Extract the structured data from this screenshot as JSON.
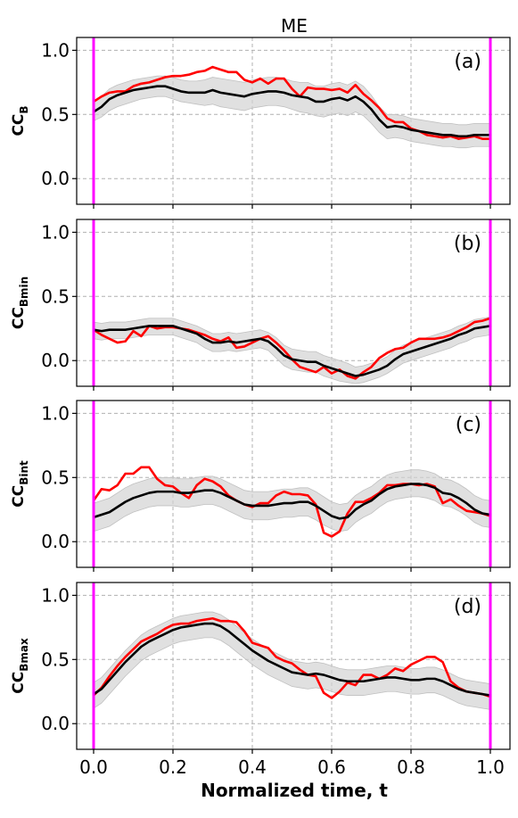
{
  "figure": {
    "title": "ME",
    "xlabel": "Normalized time,  t"
  },
  "chart_data": [
    {
      "type": "line",
      "panel_label": "(a)",
      "ylabel_main": "CC",
      "ylabel_sub": "B",
      "xlim": [
        0,
        1
      ],
      "ylim": [
        -0.2,
        1.1
      ],
      "xticks": [
        "0.0",
        "0.2",
        "0.4",
        "0.6",
        "0.8",
        "1.0"
      ],
      "yticks": [
        "0.0",
        "0.5",
        "1.0"
      ],
      "grid": true,
      "vlines": [
        0.0,
        1.0
      ],
      "x": [
        0.0,
        0.02,
        0.04,
        0.06,
        0.08,
        0.1,
        0.12,
        0.14,
        0.16,
        0.18,
        0.2,
        0.22,
        0.24,
        0.26,
        0.28,
        0.3,
        0.32,
        0.34,
        0.36,
        0.38,
        0.4,
        0.42,
        0.44,
        0.46,
        0.48,
        0.5,
        0.52,
        0.54,
        0.56,
        0.58,
        0.6,
        0.62,
        0.64,
        0.66,
        0.68,
        0.7,
        0.72,
        0.74,
        0.76,
        0.78,
        0.8,
        0.82,
        0.84,
        0.86,
        0.88,
        0.9,
        0.92,
        0.94,
        0.96,
        0.98,
        1.0
      ],
      "series": [
        {
          "color": "#ff0000",
          "values": [
            0.6,
            0.64,
            0.67,
            0.68,
            0.68,
            0.72,
            0.74,
            0.75,
            0.77,
            0.79,
            0.8,
            0.8,
            0.81,
            0.83,
            0.84,
            0.87,
            0.85,
            0.83,
            0.83,
            0.77,
            0.75,
            0.78,
            0.74,
            0.78,
            0.78,
            0.7,
            0.64,
            0.71,
            0.7,
            0.7,
            0.69,
            0.7,
            0.67,
            0.73,
            0.66,
            0.61,
            0.55,
            0.47,
            0.44,
            0.44,
            0.39,
            0.37,
            0.34,
            0.33,
            0.32,
            0.33,
            0.31,
            0.32,
            0.33,
            0.31,
            0.31
          ]
        },
        {
          "color": "#000000",
          "values": [
            0.52,
            0.56,
            0.62,
            0.65,
            0.67,
            0.69,
            0.7,
            0.71,
            0.72,
            0.72,
            0.7,
            0.68,
            0.67,
            0.67,
            0.67,
            0.69,
            0.67,
            0.66,
            0.65,
            0.64,
            0.66,
            0.67,
            0.68,
            0.68,
            0.67,
            0.65,
            0.64,
            0.63,
            0.6,
            0.6,
            0.62,
            0.63,
            0.61,
            0.64,
            0.6,
            0.54,
            0.46,
            0.4,
            0.41,
            0.4,
            0.38,
            0.37,
            0.36,
            0.35,
            0.34,
            0.34,
            0.33,
            0.33,
            0.34,
            0.34,
            0.34
          ]
        }
      ],
      "band": {
        "lower": [
          0.45,
          0.48,
          0.53,
          0.56,
          0.58,
          0.6,
          0.62,
          0.63,
          0.64,
          0.64,
          0.62,
          0.6,
          0.59,
          0.58,
          0.57,
          0.58,
          0.56,
          0.55,
          0.54,
          0.53,
          0.55,
          0.56,
          0.57,
          0.57,
          0.56,
          0.54,
          0.52,
          0.51,
          0.49,
          0.48,
          0.5,
          0.51,
          0.49,
          0.52,
          0.49,
          0.43,
          0.36,
          0.31,
          0.32,
          0.31,
          0.29,
          0.28,
          0.27,
          0.26,
          0.25,
          0.25,
          0.24,
          0.24,
          0.25,
          0.25,
          0.25
        ],
        "upper": [
          0.6,
          0.64,
          0.7,
          0.73,
          0.75,
          0.77,
          0.78,
          0.79,
          0.8,
          0.8,
          0.79,
          0.77,
          0.76,
          0.76,
          0.77,
          0.79,
          0.78,
          0.77,
          0.76,
          0.75,
          0.77,
          0.78,
          0.79,
          0.79,
          0.78,
          0.76,
          0.75,
          0.75,
          0.72,
          0.72,
          0.74,
          0.75,
          0.73,
          0.76,
          0.72,
          0.65,
          0.56,
          0.5,
          0.5,
          0.49,
          0.47,
          0.46,
          0.45,
          0.44,
          0.43,
          0.43,
          0.42,
          0.42,
          0.43,
          0.43,
          0.43
        ]
      }
    },
    {
      "type": "line",
      "panel_label": "(b)",
      "ylabel_main": "CC",
      "ylabel_sub": "Bmin",
      "xlim": [
        0,
        1
      ],
      "ylim": [
        -0.2,
        1.1
      ],
      "xticks": [
        "0.0",
        "0.2",
        "0.4",
        "0.6",
        "0.8",
        "1.0"
      ],
      "yticks": [
        "0.0",
        "0.5",
        "1.0"
      ],
      "grid": true,
      "vlines": [
        0.0,
        1.0
      ],
      "x": [
        0.0,
        0.02,
        0.04,
        0.06,
        0.08,
        0.1,
        0.12,
        0.14,
        0.16,
        0.18,
        0.2,
        0.22,
        0.24,
        0.26,
        0.28,
        0.3,
        0.32,
        0.34,
        0.36,
        0.38,
        0.4,
        0.42,
        0.44,
        0.46,
        0.48,
        0.5,
        0.52,
        0.54,
        0.56,
        0.58,
        0.6,
        0.62,
        0.64,
        0.66,
        0.68,
        0.7,
        0.72,
        0.74,
        0.76,
        0.78,
        0.8,
        0.82,
        0.84,
        0.86,
        0.88,
        0.9,
        0.92,
        0.94,
        0.96,
        0.98,
        1.0
      ],
      "series": [
        {
          "color": "#ff0000",
          "values": [
            0.24,
            0.2,
            0.17,
            0.14,
            0.15,
            0.23,
            0.19,
            0.27,
            0.25,
            0.26,
            0.26,
            0.25,
            0.24,
            0.22,
            0.2,
            0.17,
            0.15,
            0.18,
            0.1,
            0.11,
            0.14,
            0.17,
            0.19,
            0.14,
            0.08,
            0.01,
            -0.05,
            -0.07,
            -0.09,
            -0.05,
            -0.1,
            -0.07,
            -0.12,
            -0.14,
            -0.09,
            -0.05,
            0.02,
            0.06,
            0.09,
            0.1,
            0.14,
            0.17,
            0.17,
            0.17,
            0.18,
            0.2,
            0.23,
            0.26,
            0.3,
            0.31,
            0.33
          ]
        },
        {
          "color": "#000000",
          "values": [
            0.24,
            0.23,
            0.24,
            0.24,
            0.24,
            0.25,
            0.26,
            0.27,
            0.27,
            0.27,
            0.27,
            0.25,
            0.23,
            0.21,
            0.17,
            0.14,
            0.14,
            0.15,
            0.14,
            0.15,
            0.16,
            0.17,
            0.15,
            0.1,
            0.04,
            0.01,
            0.0,
            -0.01,
            -0.01,
            -0.04,
            -0.06,
            -0.08,
            -0.1,
            -0.12,
            -0.11,
            -0.09,
            -0.07,
            -0.04,
            0.01,
            0.05,
            0.07,
            0.09,
            0.11,
            0.13,
            0.15,
            0.17,
            0.2,
            0.22,
            0.25,
            0.26,
            0.27
          ]
        }
      ],
      "band": {
        "lower": [
          0.17,
          0.16,
          0.17,
          0.17,
          0.17,
          0.18,
          0.19,
          0.2,
          0.2,
          0.2,
          0.2,
          0.18,
          0.16,
          0.14,
          0.1,
          0.07,
          0.07,
          0.08,
          0.07,
          0.08,
          0.09,
          0.1,
          0.08,
          0.02,
          -0.04,
          -0.07,
          -0.08,
          -0.09,
          -0.09,
          -0.12,
          -0.14,
          -0.16,
          -0.17,
          -0.18,
          -0.17,
          -0.15,
          -0.13,
          -0.1,
          -0.06,
          -0.02,
          0.0,
          0.02,
          0.04,
          0.06,
          0.08,
          0.1,
          0.13,
          0.15,
          0.18,
          0.19,
          0.2
        ],
        "upper": [
          0.3,
          0.29,
          0.3,
          0.3,
          0.3,
          0.31,
          0.32,
          0.33,
          0.33,
          0.33,
          0.33,
          0.31,
          0.29,
          0.27,
          0.24,
          0.21,
          0.21,
          0.22,
          0.21,
          0.22,
          0.23,
          0.24,
          0.22,
          0.18,
          0.12,
          0.09,
          0.08,
          0.07,
          0.07,
          0.04,
          0.02,
          0.0,
          -0.02,
          -0.05,
          -0.04,
          -0.02,
          0.0,
          0.03,
          0.08,
          0.12,
          0.14,
          0.16,
          0.18,
          0.2,
          0.22,
          0.24,
          0.27,
          0.29,
          0.32,
          0.33,
          0.34
        ]
      }
    },
    {
      "type": "line",
      "panel_label": "(c)",
      "ylabel_main": "CC",
      "ylabel_sub": "Bint",
      "xlim": [
        0,
        1
      ],
      "ylim": [
        -0.2,
        1.1
      ],
      "xticks": [
        "0.0",
        "0.2",
        "0.4",
        "0.6",
        "0.8",
        "1.0"
      ],
      "yticks": [
        "0.0",
        "0.5",
        "1.0"
      ],
      "grid": true,
      "vlines": [
        0.0,
        1.0
      ],
      "x": [
        0.0,
        0.02,
        0.04,
        0.06,
        0.08,
        0.1,
        0.12,
        0.14,
        0.16,
        0.18,
        0.2,
        0.22,
        0.24,
        0.26,
        0.28,
        0.3,
        0.32,
        0.34,
        0.36,
        0.38,
        0.4,
        0.42,
        0.44,
        0.46,
        0.48,
        0.5,
        0.52,
        0.54,
        0.56,
        0.58,
        0.6,
        0.62,
        0.64,
        0.66,
        0.68,
        0.7,
        0.72,
        0.74,
        0.76,
        0.78,
        0.8,
        0.82,
        0.84,
        0.86,
        0.88,
        0.9,
        0.92,
        0.94,
        0.96,
        0.98,
        1.0
      ],
      "series": [
        {
          "color": "#ff0000",
          "values": [
            0.32,
            0.41,
            0.4,
            0.44,
            0.53,
            0.53,
            0.58,
            0.58,
            0.49,
            0.44,
            0.43,
            0.38,
            0.34,
            0.44,
            0.49,
            0.47,
            0.43,
            0.36,
            0.32,
            0.29,
            0.27,
            0.3,
            0.3,
            0.36,
            0.39,
            0.37,
            0.37,
            0.36,
            0.29,
            0.07,
            0.04,
            0.08,
            0.22,
            0.31,
            0.31,
            0.34,
            0.38,
            0.44,
            0.44,
            0.45,
            0.45,
            0.44,
            0.45,
            0.43,
            0.3,
            0.33,
            0.28,
            0.24,
            0.23,
            0.22,
            0.2
          ]
        },
        {
          "color": "#000000",
          "values": [
            0.19,
            0.21,
            0.23,
            0.27,
            0.31,
            0.34,
            0.36,
            0.38,
            0.39,
            0.39,
            0.39,
            0.38,
            0.38,
            0.39,
            0.4,
            0.4,
            0.38,
            0.35,
            0.32,
            0.29,
            0.28,
            0.28,
            0.28,
            0.29,
            0.3,
            0.3,
            0.31,
            0.31,
            0.28,
            0.24,
            0.2,
            0.18,
            0.19,
            0.25,
            0.29,
            0.32,
            0.37,
            0.41,
            0.43,
            0.44,
            0.45,
            0.45,
            0.44,
            0.42,
            0.38,
            0.37,
            0.34,
            0.3,
            0.25,
            0.22,
            0.21
          ]
        }
      ],
      "band": {
        "lower": [
          0.08,
          0.1,
          0.12,
          0.16,
          0.2,
          0.23,
          0.25,
          0.27,
          0.28,
          0.28,
          0.28,
          0.27,
          0.27,
          0.28,
          0.29,
          0.29,
          0.27,
          0.24,
          0.21,
          0.18,
          0.17,
          0.17,
          0.17,
          0.18,
          0.19,
          0.19,
          0.2,
          0.2,
          0.17,
          0.13,
          0.1,
          0.08,
          0.09,
          0.15,
          0.19,
          0.22,
          0.27,
          0.31,
          0.33,
          0.34,
          0.35,
          0.35,
          0.34,
          0.32,
          0.28,
          0.27,
          0.24,
          0.2,
          0.15,
          0.12,
          0.11
        ],
        "upper": [
          0.3,
          0.32,
          0.34,
          0.38,
          0.42,
          0.45,
          0.47,
          0.49,
          0.5,
          0.5,
          0.5,
          0.49,
          0.49,
          0.5,
          0.51,
          0.51,
          0.49,
          0.46,
          0.43,
          0.4,
          0.39,
          0.39,
          0.39,
          0.4,
          0.41,
          0.41,
          0.42,
          0.42,
          0.39,
          0.35,
          0.31,
          0.29,
          0.3,
          0.36,
          0.4,
          0.43,
          0.48,
          0.52,
          0.54,
          0.55,
          0.56,
          0.56,
          0.55,
          0.53,
          0.49,
          0.48,
          0.45,
          0.41,
          0.36,
          0.33,
          0.32
        ]
      }
    },
    {
      "type": "line",
      "panel_label": "(d)",
      "ylabel_main": "CC",
      "ylabel_sub": "Bmax",
      "xlim": [
        0,
        1
      ],
      "ylim": [
        -0.2,
        1.1
      ],
      "xticks": [
        "0.0",
        "0.2",
        "0.4",
        "0.6",
        "0.8",
        "1.0"
      ],
      "yticks": [
        "0.0",
        "0.5",
        "1.0"
      ],
      "grid": true,
      "vlines": [
        0.0,
        1.0
      ],
      "x": [
        0.0,
        0.02,
        0.04,
        0.06,
        0.08,
        0.1,
        0.12,
        0.14,
        0.16,
        0.18,
        0.2,
        0.22,
        0.24,
        0.26,
        0.28,
        0.3,
        0.32,
        0.34,
        0.36,
        0.38,
        0.4,
        0.42,
        0.44,
        0.46,
        0.48,
        0.5,
        0.52,
        0.54,
        0.56,
        0.58,
        0.6,
        0.62,
        0.64,
        0.66,
        0.68,
        0.7,
        0.72,
        0.74,
        0.76,
        0.78,
        0.8,
        0.82,
        0.84,
        0.86,
        0.88,
        0.9,
        0.92,
        0.94,
        0.96,
        0.98,
        1.0
      ],
      "series": [
        {
          "color": "#ff0000",
          "values": [
            0.22,
            0.28,
            0.37,
            0.45,
            0.52,
            0.58,
            0.64,
            0.67,
            0.7,
            0.74,
            0.77,
            0.78,
            0.78,
            0.8,
            0.81,
            0.82,
            0.8,
            0.8,
            0.79,
            0.72,
            0.63,
            0.61,
            0.59,
            0.52,
            0.49,
            0.47,
            0.42,
            0.38,
            0.37,
            0.24,
            0.2,
            0.25,
            0.32,
            0.3,
            0.38,
            0.38,
            0.35,
            0.38,
            0.43,
            0.41,
            0.46,
            0.49,
            0.52,
            0.52,
            0.48,
            0.33,
            0.28,
            0.25,
            0.24,
            0.23,
            0.21
          ]
        },
        {
          "color": "#000000",
          "values": [
            0.23,
            0.27,
            0.34,
            0.41,
            0.48,
            0.54,
            0.6,
            0.64,
            0.67,
            0.7,
            0.73,
            0.75,
            0.76,
            0.77,
            0.78,
            0.78,
            0.76,
            0.72,
            0.67,
            0.62,
            0.57,
            0.53,
            0.49,
            0.46,
            0.43,
            0.4,
            0.39,
            0.38,
            0.39,
            0.38,
            0.36,
            0.34,
            0.33,
            0.33,
            0.33,
            0.34,
            0.35,
            0.36,
            0.36,
            0.35,
            0.34,
            0.34,
            0.35,
            0.35,
            0.33,
            0.3,
            0.27,
            0.25,
            0.24,
            0.23,
            0.22
          ]
        }
      ],
      "band": {
        "lower": [
          0.12,
          0.16,
          0.23,
          0.3,
          0.37,
          0.43,
          0.49,
          0.53,
          0.56,
          0.59,
          0.62,
          0.64,
          0.65,
          0.66,
          0.67,
          0.67,
          0.65,
          0.61,
          0.56,
          0.51,
          0.46,
          0.42,
          0.38,
          0.35,
          0.32,
          0.29,
          0.28,
          0.27,
          0.28,
          0.27,
          0.25,
          0.23,
          0.22,
          0.22,
          0.22,
          0.23,
          0.24,
          0.25,
          0.25,
          0.24,
          0.23,
          0.23,
          0.24,
          0.24,
          0.22,
          0.19,
          0.16,
          0.14,
          0.13,
          0.12,
          0.11
        ],
        "upper": [
          0.32,
          0.36,
          0.43,
          0.5,
          0.57,
          0.63,
          0.69,
          0.73,
          0.76,
          0.79,
          0.82,
          0.84,
          0.85,
          0.86,
          0.87,
          0.87,
          0.85,
          0.81,
          0.76,
          0.71,
          0.66,
          0.62,
          0.58,
          0.55,
          0.52,
          0.49,
          0.48,
          0.47,
          0.48,
          0.47,
          0.45,
          0.43,
          0.42,
          0.42,
          0.42,
          0.43,
          0.44,
          0.45,
          0.45,
          0.44,
          0.43,
          0.43,
          0.44,
          0.44,
          0.42,
          0.39,
          0.36,
          0.34,
          0.33,
          0.32,
          0.31
        ]
      }
    }
  ]
}
